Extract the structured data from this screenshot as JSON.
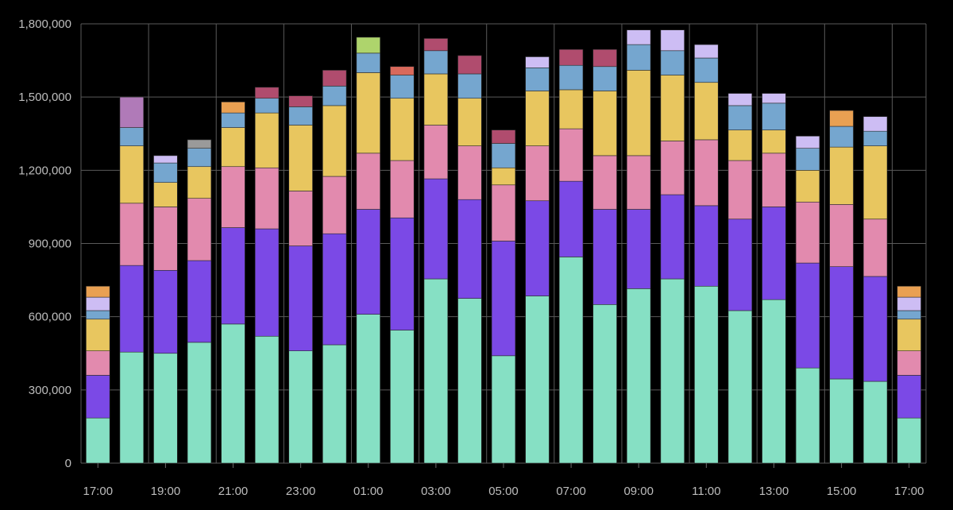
{
  "chart_data": {
    "type": "bar",
    "stacked": true,
    "ylim": [
      0,
      1800000
    ],
    "y_ticks": [
      0,
      300000,
      600000,
      900000,
      1200000,
      1500000,
      1800000
    ],
    "y_tick_labels": [
      "0",
      "300,000",
      "600,000",
      "900,000",
      "1,200,000",
      "1,500,000",
      "1,800,000"
    ],
    "x_tick_labels": [
      "17:00",
      "19:00",
      "21:00",
      "23:00",
      "01:00",
      "03:00",
      "05:00",
      "07:00",
      "09:00",
      "11:00",
      "13:00",
      "15:00",
      "17:00"
    ],
    "x_tick_every": 2,
    "grid": true,
    "legend": "none",
    "colors": [
      "#86e0c4",
      "#7b49e6",
      "#e28aae",
      "#e8c65f",
      "#75a6cf",
      "#cdbdf4",
      "#e9a052",
      "#b04c6e",
      "#b07ab8",
      "#9a9a9a",
      "#aed46c",
      "#d9695b"
    ],
    "bars": [
      [
        [
          185000,
          0
        ],
        [
          175000,
          1
        ],
        [
          100000,
          2
        ],
        [
          130000,
          3
        ],
        [
          35000,
          4
        ],
        [
          55000,
          5
        ],
        [
          45000,
          6
        ]
      ],
      [
        [
          455000,
          0
        ],
        [
          355000,
          1
        ],
        [
          255000,
          2
        ],
        [
          235000,
          3
        ],
        [
          75000,
          4
        ],
        [
          125000,
          8
        ]
      ],
      [
        [
          450000,
          0
        ],
        [
          340000,
          1
        ],
        [
          260000,
          2
        ],
        [
          100000,
          3
        ],
        [
          80000,
          4
        ],
        [
          30000,
          5
        ]
      ],
      [
        [
          495000,
          0
        ],
        [
          335000,
          1
        ],
        [
          255000,
          2
        ],
        [
          130000,
          3
        ],
        [
          75000,
          4
        ],
        [
          35000,
          9
        ]
      ],
      [
        [
          570000,
          0
        ],
        [
          395000,
          1
        ],
        [
          250000,
          2
        ],
        [
          160000,
          3
        ],
        [
          60000,
          4
        ],
        [
          45000,
          6
        ]
      ],
      [
        [
          520000,
          0
        ],
        [
          440000,
          1
        ],
        [
          250000,
          2
        ],
        [
          225000,
          3
        ],
        [
          60000,
          4
        ],
        [
          45000,
          7
        ]
      ],
      [
        [
          460000,
          0
        ],
        [
          430000,
          1
        ],
        [
          225000,
          2
        ],
        [
          270000,
          3
        ],
        [
          75000,
          4
        ],
        [
          45000,
          7
        ]
      ],
      [
        [
          485000,
          0
        ],
        [
          455000,
          1
        ],
        [
          235000,
          2
        ],
        [
          290000,
          3
        ],
        [
          80000,
          4
        ],
        [
          65000,
          7
        ]
      ],
      [
        [
          610000,
          0
        ],
        [
          430000,
          1
        ],
        [
          230000,
          2
        ],
        [
          330000,
          3
        ],
        [
          80000,
          4
        ],
        [
          65000,
          10
        ]
      ],
      [
        [
          545000,
          0
        ],
        [
          460000,
          1
        ],
        [
          235000,
          2
        ],
        [
          255000,
          3
        ],
        [
          95000,
          4
        ],
        [
          35000,
          11
        ]
      ],
      [
        [
          755000,
          0
        ],
        [
          410000,
          1
        ],
        [
          220000,
          2
        ],
        [
          210000,
          3
        ],
        [
          95000,
          4
        ],
        [
          50000,
          7
        ]
      ],
      [
        [
          675000,
          0
        ],
        [
          405000,
          1
        ],
        [
          220000,
          2
        ],
        [
          195000,
          3
        ],
        [
          100000,
          4
        ],
        [
          75000,
          7
        ]
      ],
      [
        [
          440000,
          0
        ],
        [
          470000,
          1
        ],
        [
          230000,
          2
        ],
        [
          70000,
          3
        ],
        [
          100000,
          4
        ],
        [
          55000,
          7
        ]
      ],
      [
        [
          685000,
          0
        ],
        [
          390000,
          1
        ],
        [
          225000,
          2
        ],
        [
          225000,
          3
        ],
        [
          95000,
          4
        ],
        [
          45000,
          5
        ]
      ],
      [
        [
          845000,
          0
        ],
        [
          310000,
          1
        ],
        [
          215000,
          2
        ],
        [
          160000,
          3
        ],
        [
          100000,
          4
        ],
        [
          65000,
          7
        ]
      ],
      [
        [
          650000,
          0
        ],
        [
          390000,
          1
        ],
        [
          220000,
          2
        ],
        [
          265000,
          3
        ],
        [
          100000,
          4
        ],
        [
          70000,
          7
        ]
      ],
      [
        [
          715000,
          0
        ],
        [
          325000,
          1
        ],
        [
          220000,
          2
        ],
        [
          350000,
          3
        ],
        [
          105000,
          4
        ],
        [
          60000,
          5
        ]
      ],
      [
        [
          755000,
          0
        ],
        [
          345000,
          1
        ],
        [
          220000,
          2
        ],
        [
          270000,
          3
        ],
        [
          100000,
          4
        ],
        [
          85000,
          5
        ]
      ],
      [
        [
          725000,
          0
        ],
        [
          330000,
          1
        ],
        [
          270000,
          2
        ],
        [
          235000,
          3
        ],
        [
          100000,
          4
        ],
        [
          55000,
          5
        ]
      ],
      [
        [
          625000,
          0
        ],
        [
          375000,
          1
        ],
        [
          240000,
          2
        ],
        [
          125000,
          3
        ],
        [
          100000,
          4
        ],
        [
          50000,
          5
        ]
      ],
      [
        [
          670000,
          0
        ],
        [
          380000,
          1
        ],
        [
          220000,
          2
        ],
        [
          95000,
          3
        ],
        [
          110000,
          4
        ],
        [
          40000,
          5
        ]
      ],
      [
        [
          390000,
          0
        ],
        [
          430000,
          1
        ],
        [
          250000,
          2
        ],
        [
          130000,
          3
        ],
        [
          90000,
          4
        ],
        [
          50000,
          5
        ]
      ],
      [
        [
          345000,
          0
        ],
        [
          460000,
          1
        ],
        [
          255000,
          2
        ],
        [
          235000,
          3
        ],
        [
          85000,
          4
        ],
        [
          65000,
          6
        ]
      ],
      [
        [
          335000,
          0
        ],
        [
          430000,
          1
        ],
        [
          235000,
          2
        ],
        [
          300000,
          3
        ],
        [
          60000,
          4
        ],
        [
          60000,
          5
        ]
      ],
      [
        [
          185000,
          0
        ],
        [
          175000,
          1
        ],
        [
          100000,
          2
        ],
        [
          130000,
          3
        ],
        [
          35000,
          4
        ],
        [
          55000,
          5
        ],
        [
          45000,
          6
        ]
      ]
    ]
  }
}
